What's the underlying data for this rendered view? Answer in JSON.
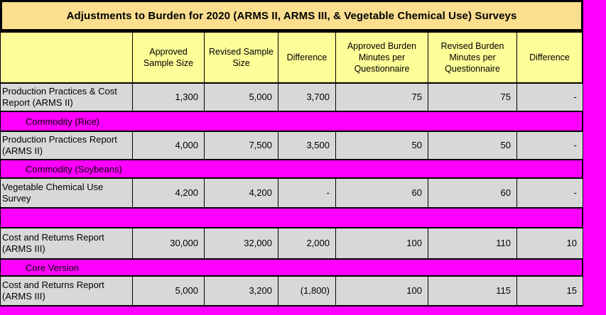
{
  "title": "Adjustments to Burden for 2020 (ARMS II, ARMS III, & Vegetable Chemical Use) Surveys",
  "header": {
    "col0": "",
    "cols": [
      "Approved Sample Size",
      "Revised Sample Size",
      "Difference",
      "Approved Burden Minutes per Questionnaire",
      "Revised Burden Minutes per Questionnaire",
      "Difference"
    ]
  },
  "rows": [
    {
      "kind": "data",
      "label": "Production Practices & Cost Report (ARMS II)",
      "values": [
        "1,300",
        "5,000",
        "3,700",
        "75",
        "75",
        "-"
      ]
    },
    {
      "kind": "band",
      "label": "Commodity (Rice)"
    },
    {
      "kind": "data",
      "label": "Production Practices Report (ARMS II)",
      "values": [
        "4,000",
        "7,500",
        "3,500",
        "50",
        "50",
        "-"
      ]
    },
    {
      "kind": "band",
      "label": "Commodity (Soybeans)"
    },
    {
      "kind": "data",
      "label": "Vegetable Chemical Use Survey",
      "values": [
        "4,200",
        "4,200",
        "-",
        "60",
        "60",
        "-"
      ]
    },
    {
      "kind": "band",
      "label": ""
    },
    {
      "kind": "data",
      "label": "Cost and Returns Report (ARMS III)",
      "values": [
        "30,000",
        "32,000",
        "2,000",
        "100",
        "110",
        "10"
      ]
    },
    {
      "kind": "band",
      "label": "Core Version"
    },
    {
      "kind": "data",
      "label": "Cost and Returns Report (ARMS III)",
      "values": [
        "5,000",
        "3,200",
        "(1,800)",
        "100",
        "115",
        "15"
      ]
    }
  ],
  "colors": {
    "magenta": "#FF00FF",
    "title_bg": "#FBDE8E",
    "header_bg": "#FEFE99",
    "cell_bg": "#D8D8D8",
    "border": "#000000"
  }
}
